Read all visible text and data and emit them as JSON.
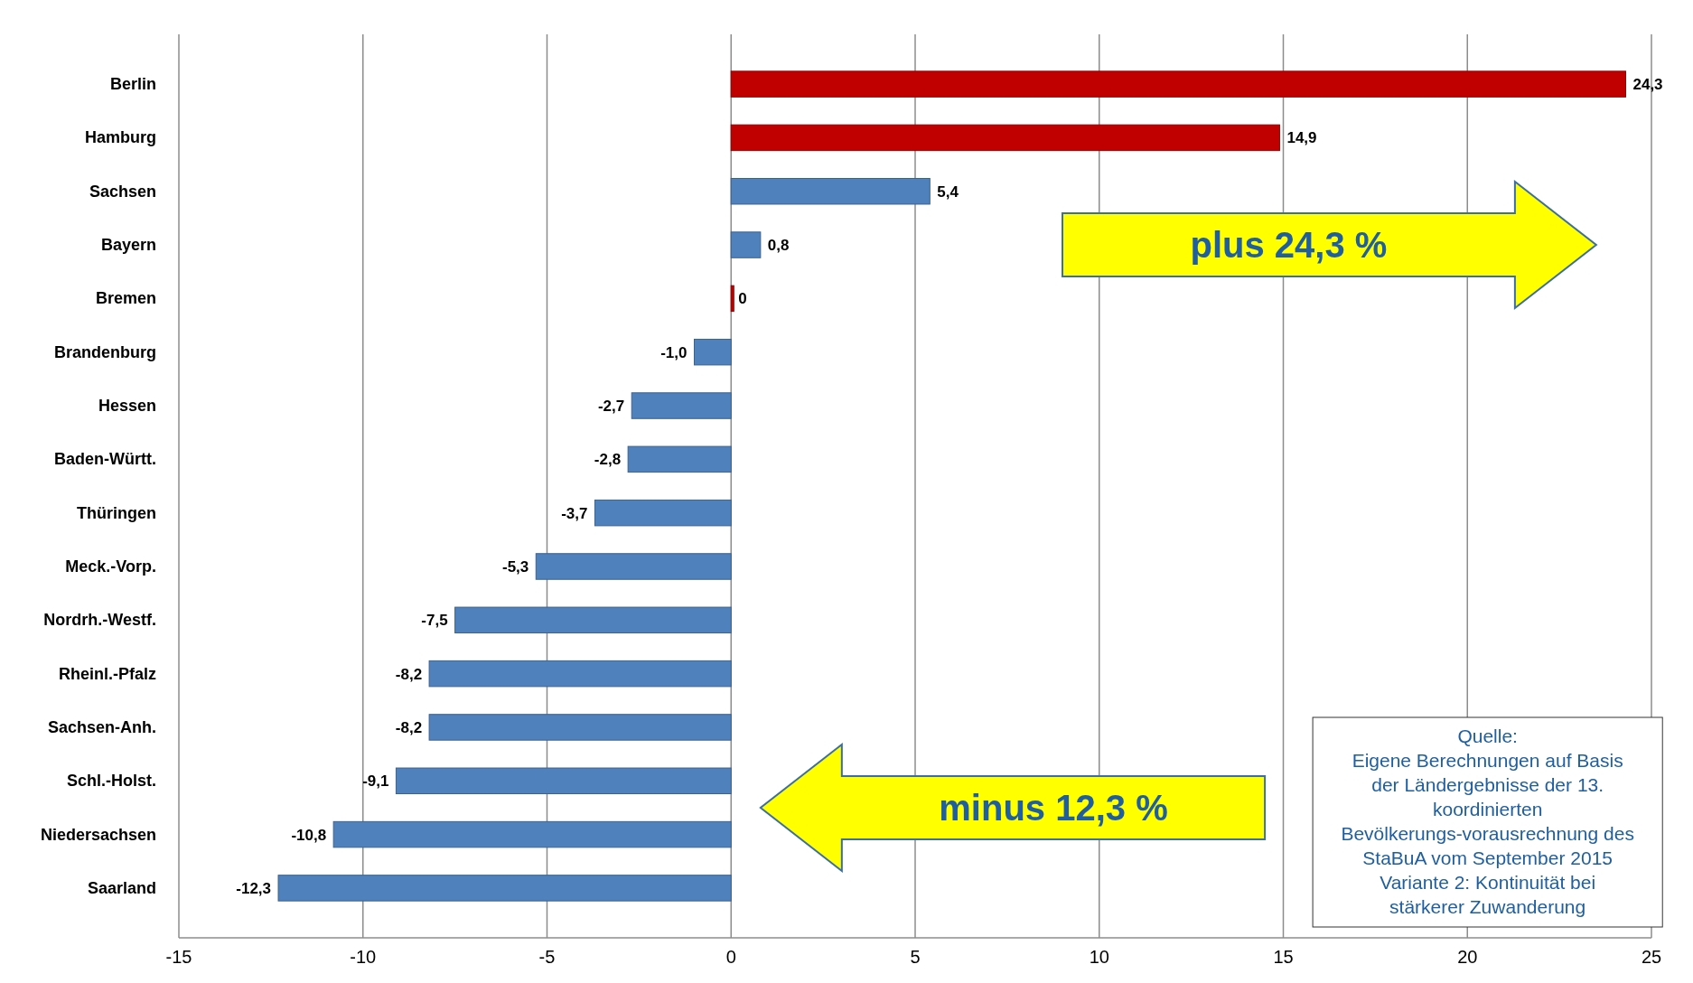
{
  "chart_data": {
    "type": "bar",
    "orientation": "horizontal",
    "categories": [
      "Berlin",
      "Hamburg",
      "Sachsen",
      "Bayern",
      "Bremen",
      "Brandenburg",
      "Hessen",
      "Baden-Württ.",
      "Thüringen",
      "Meck.-Vorp.",
      "Nordrh.-Westf.",
      "Rheinl.-Pfalz",
      "Sachsen-Anh.",
      "Schl.-Holst.",
      "Niedersachsen",
      "Saarland"
    ],
    "values": [
      24.3,
      14.9,
      5.4,
      0.8,
      0,
      -1.0,
      -2.7,
      -2.8,
      -3.7,
      -5.3,
      -7.5,
      -8.2,
      -8.2,
      -9.1,
      -10.8,
      -12.3
    ],
    "colors": [
      "#c00000",
      "#c00000",
      "#4f81bd",
      "#4f81bd",
      "#c00000",
      "#4f81bd",
      "#4f81bd",
      "#4f81bd",
      "#4f81bd",
      "#4f81bd",
      "#4f81bd",
      "#4f81bd",
      "#4f81bd",
      "#4f81bd",
      "#4f81bd",
      "#4f81bd"
    ],
    "value_labels": [
      "24,3",
      "14,9",
      "5,4",
      "0,8",
      "0",
      "-1,0",
      "-2,7",
      "-2,8",
      "-3,7",
      "-5,3",
      "-7,5",
      "-8,2",
      "-8,2",
      "-9,1",
      "-10,8",
      "-12,3"
    ],
    "xlim": [
      -15,
      25
    ],
    "xticks": [
      -15,
      -10,
      -5,
      0,
      5,
      10,
      15,
      20,
      25
    ],
    "grid": "x",
    "annotations": [
      "plus 24,3 %",
      "minus 12,3 %",
      "Quelle:",
      "Eigene Berechnungen auf Basis der Ländergebnisse der 13. koordinierten Bevölkerungs-vorausrechnung des StaBuA vom September 2015",
      "Variante 2: Kontinuität bei stärkerer Zuwanderung"
    ]
  }
}
